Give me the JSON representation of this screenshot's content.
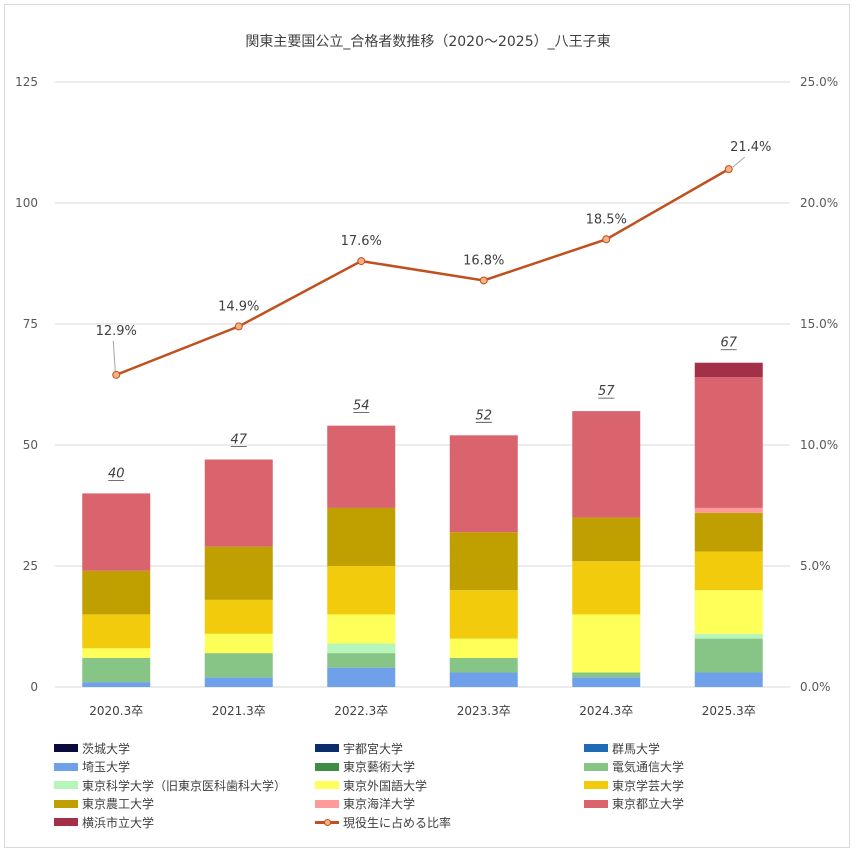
{
  "chart_data": {
    "type": "bar+line",
    "title": "関東主要国公立_合格者数推移（2020～2025）_八王子東",
    "categories": [
      "2020.3卒",
      "2021.3卒",
      "2022.3卒",
      "2023.3卒",
      "2024.3卒",
      "2025.3卒"
    ],
    "y_left": {
      "min": 0,
      "max": 125,
      "ticks": [
        "0",
        "25",
        "50",
        "75",
        "100",
        "125"
      ]
    },
    "y_right": {
      "min": 0,
      "max": 0.25,
      "ticks": [
        "0.0%",
        "5.0%",
        "10.0%",
        "15.0%",
        "20.0%",
        "25.0%"
      ]
    },
    "grid": true,
    "legend_position": "bottom",
    "series": [
      {
        "name": "茨城大学",
        "color": "#0a0a3c",
        "values": [
          0,
          0,
          0,
          0,
          0,
          0
        ]
      },
      {
        "name": "宇都宮大学",
        "color": "#0b2d6b",
        "values": [
          0,
          0,
          0,
          0,
          0,
          0
        ]
      },
      {
        "name": "群馬大学",
        "color": "#1f6ab5",
        "values": [
          0,
          0,
          0,
          0,
          0,
          0
        ]
      },
      {
        "name": "埼玉大学",
        "color": "#6fa1ea",
        "values": [
          1,
          2,
          4,
          3,
          2,
          3
        ]
      },
      {
        "name": "東京藝術大学",
        "color": "#3f8c45",
        "values": [
          0,
          0,
          0,
          0,
          0,
          0
        ]
      },
      {
        "name": "電気通信大学",
        "color": "#86c586",
        "values": [
          5,
          5,
          3,
          3,
          1,
          7
        ]
      },
      {
        "name": "東京科学大学（旧東京医科歯科大学）",
        "color": "#b8f5b8",
        "values": [
          0,
          0,
          2,
          0,
          0,
          1
        ]
      },
      {
        "name": "東京外国語大学",
        "color": "#ffff5a",
        "values": [
          2,
          4,
          6,
          4,
          12,
          9
        ]
      },
      {
        "name": "東京学芸大学",
        "color": "#f2cc0c",
        "values": [
          7,
          7,
          10,
          10,
          11,
          8
        ]
      },
      {
        "name": "東京農工大学",
        "color": "#bfa000",
        "values": [
          9,
          11,
          12,
          12,
          9,
          8
        ]
      },
      {
        "name": "東京海洋大学",
        "color": "#ff9a9a",
        "values": [
          0,
          0,
          0,
          0,
          0,
          1
        ]
      },
      {
        "name": "東京都立大学",
        "color": "#d9646e",
        "values": [
          16,
          18,
          17,
          20,
          22,
          27
        ]
      },
      {
        "name": "横浜市立大学",
        "color": "#a23046",
        "values": [
          0,
          0,
          0,
          0,
          0,
          3
        ]
      }
    ],
    "totals": [
      "40",
      "47",
      "54",
      "52",
      "57",
      "67"
    ],
    "line": {
      "name": "現役生に占める比率",
      "color": "#c0501e",
      "marker_fill": "#f4b183",
      "values": [
        0.129,
        0.149,
        0.176,
        0.168,
        0.185,
        0.214
      ],
      "labels": [
        "12.9%",
        "14.9%",
        "17.6%",
        "16.8%",
        "18.5%",
        "21.4%"
      ]
    }
  }
}
